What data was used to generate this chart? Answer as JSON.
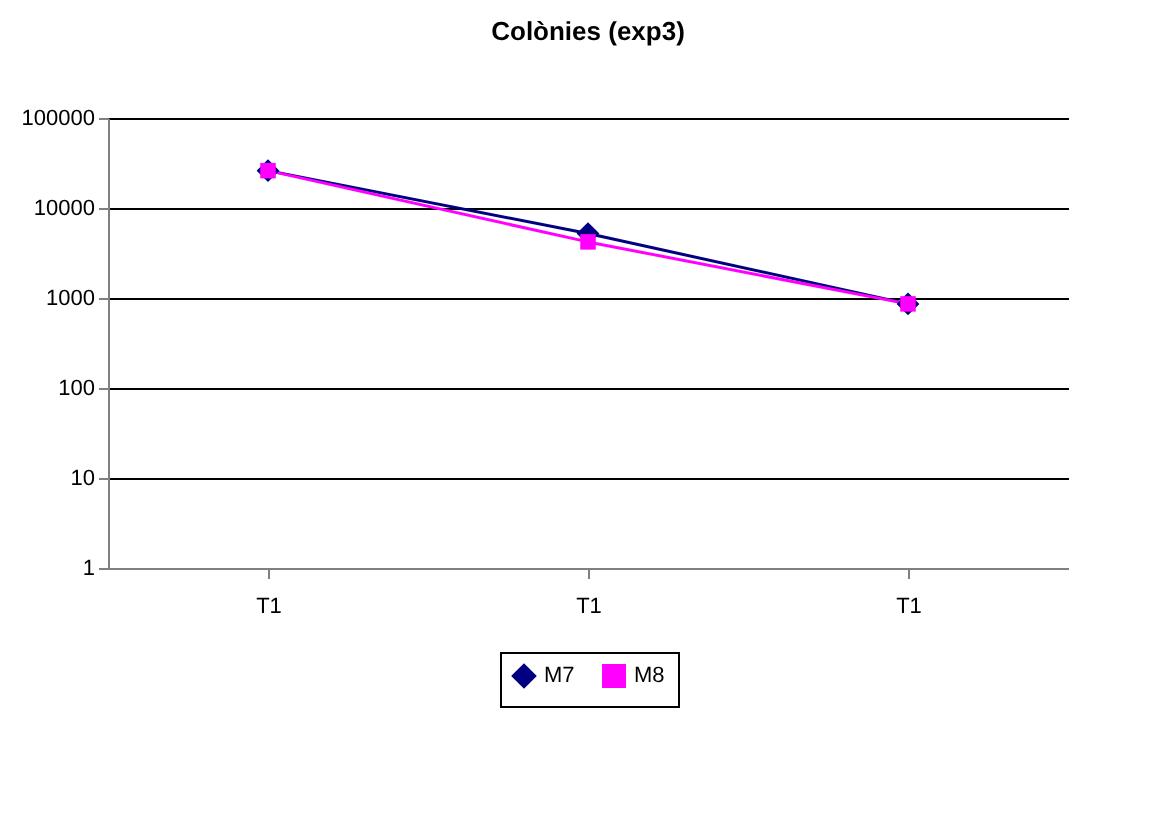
{
  "chart_data": {
    "type": "line",
    "title": "Colònies (exp3)",
    "categories": [
      "T1",
      "T1",
      "T1"
    ],
    "series": [
      {
        "name": "M7",
        "color": "#000080",
        "marker": "diamond",
        "values": [
          26000,
          5200,
          860
        ]
      },
      {
        "name": "M8",
        "color": "#ff00ff",
        "marker": "square",
        "values": [
          26000,
          4200,
          860
        ]
      }
    ],
    "log": "y",
    "ylim": [
      1,
      100000
    ],
    "yticks": [
      1,
      10,
      100,
      1000,
      10000,
      100000
    ],
    "grid": "y",
    "legend": "bottom"
  }
}
